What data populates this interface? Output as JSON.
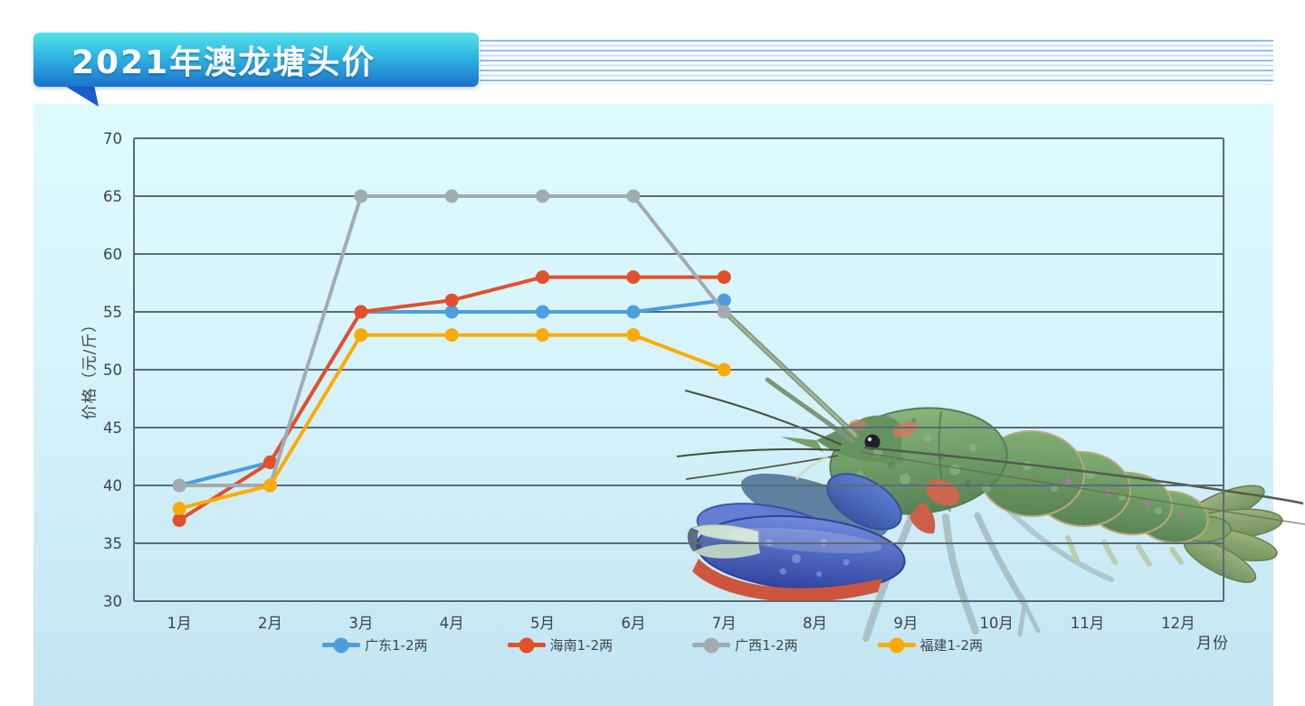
{
  "header": {
    "title": "2021年澳龙塘头价"
  },
  "colors": {
    "banner_top": "#55E2EA",
    "banner_bottom": "#1C72CC",
    "banner_tail": "#1A5EC6",
    "pinstripe": "#8FBEF2",
    "panel_top": "#DEFBFF",
    "panel_bottom": "#C3E4F2",
    "gridline": "#5B6B76",
    "axis_text": "#3C444B"
  },
  "chart_data": {
    "type": "line",
    "title": "2021年澳龙塘头价",
    "categories": [
      "1月",
      "2月",
      "3月",
      "4月",
      "5月",
      "6月",
      "7月",
      "8月",
      "9月",
      "10月",
      "11月",
      "12月"
    ],
    "series": [
      {
        "name": "广东1-2两",
        "color": "#4C9EDC",
        "values": [
          40,
          42,
          55,
          55,
          55,
          55,
          56
        ]
      },
      {
        "name": "海南1-2两",
        "color": "#E1502B",
        "values": [
          37,
          42,
          55,
          56,
          58,
          58,
          58
        ]
      },
      {
        "name": "广西1-2两",
        "color": "#A2ABAF",
        "values": [
          40,
          40,
          65,
          65,
          65,
          65,
          55
        ]
      },
      {
        "name": "福建1-2两",
        "color": "#FBAB07",
        "values": [
          38,
          40,
          53,
          53,
          53,
          53,
          50
        ]
      }
    ],
    "xlabel": "月份",
    "ylabel": "价格（元/斤）",
    "ylim": [
      30,
      70
    ],
    "ytick_step": 5,
    "grid": true,
    "legend_position": "bottom",
    "marker": "circle"
  },
  "icons": {
    "lobster": "australian-redclaw-crayfish-photo"
  }
}
